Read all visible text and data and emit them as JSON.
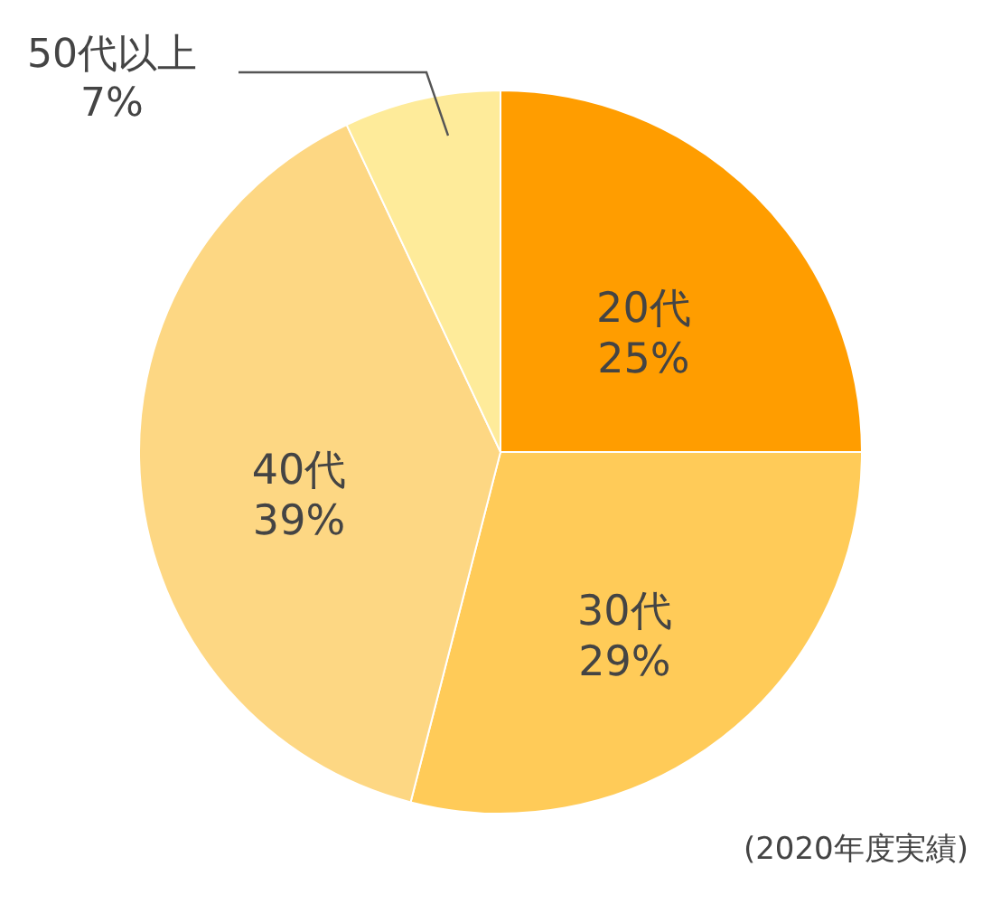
{
  "chart_data": {
    "type": "pie",
    "categories": [
      "20代",
      "30代",
      "40代",
      "50代以上"
    ],
    "values": [
      25,
      29,
      39,
      7
    ],
    "value_labels": [
      "25%",
      "29%",
      "39%",
      "7%"
    ],
    "colors": [
      "#ff9d00",
      "#ffcb58",
      "#fdd783",
      "#feeb9a"
    ],
    "annotations": [
      "(2020年度実績)"
    ]
  }
}
